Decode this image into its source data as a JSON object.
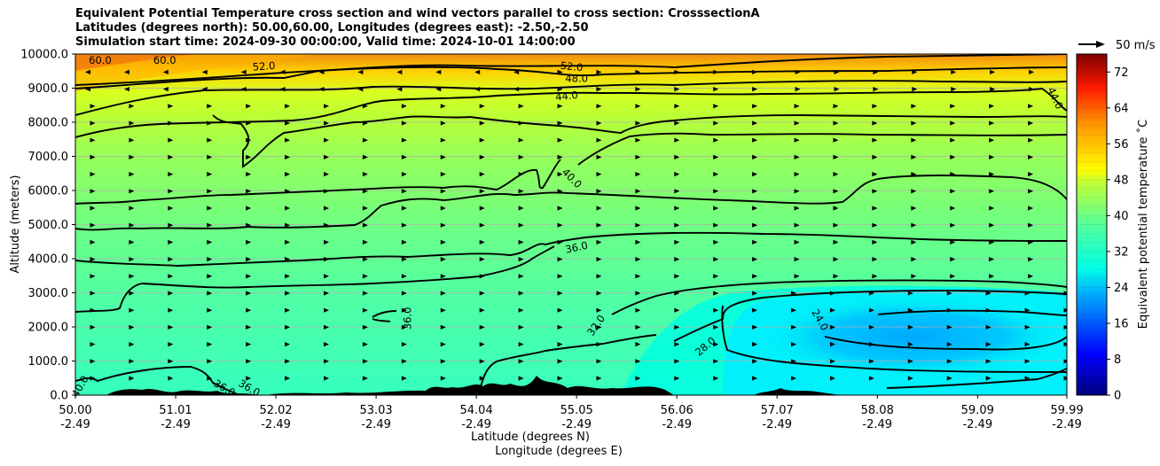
{
  "title": {
    "line1": "Equivalent Potential Temperature cross section and wind vectors parallel to cross section: CrosssectionA",
    "line2": "Latitudes (degrees north): 50.00,60.00, Longitudes (degrees east): -2.50,-2.50",
    "line3": "Simulation start time: 2024-09-30 00:00:00, Valid time: 2024-10-01 14:00:00"
  },
  "quiver_key": {
    "label": "50 m/s"
  },
  "chart_data": {
    "type": "heatmap",
    "title": "Equivalent Potential Temperature cross section and wind vectors parallel to cross section: CrosssectionA",
    "ylabel": "Altitude (meters)",
    "xlabel_line1": "Latitude (degrees N)",
    "xlabel_line2": "Longitude (degrees E)",
    "colorbar_label": "Equivalent potential temperature $^\\circ$C",
    "colorbar_label_display": "Equivalent potential temperature ˚C",
    "ylim": [
      0,
      10000
    ],
    "xlim": [
      50.0,
      59.99
    ],
    "y_ticks": [
      "0.0",
      "1000.0",
      "2000.0",
      "3000.0",
      "4000.0",
      "5000.0",
      "6000.0",
      "7000.0",
      "8000.0",
      "9000.0",
      "10000.0"
    ],
    "y_tick_values": [
      0,
      1000,
      2000,
      3000,
      4000,
      5000,
      6000,
      7000,
      8000,
      9000,
      10000
    ],
    "x_tick_values": [
      50.0,
      51.01,
      52.02,
      53.03,
      54.04,
      55.05,
      56.06,
      57.07,
      58.08,
      59.09,
      59.99
    ],
    "x_ticks_lat": [
      "50.00",
      "51.01",
      "52.02",
      "53.03",
      "54.04",
      "55.05",
      "56.06",
      "57.07",
      "58.08",
      "59.09",
      "59.99"
    ],
    "x_ticks_lon": [
      "-2.49",
      "-2.49",
      "-2.49",
      "-2.49",
      "-2.49",
      "-2.49",
      "-2.49",
      "-2.49",
      "-2.49",
      "-2.49",
      "-2.49"
    ],
    "colorbar_ticks": [
      "0",
      "8",
      "16",
      "24",
      "32",
      "40",
      "48",
      "56",
      "64",
      "72"
    ],
    "colorbar_range": [
      0,
      76
    ],
    "grid": "horizontal",
    "contour_labels": [
      {
        "text": "60.0",
        "lat": 50.25,
        "alt": 9800
      },
      {
        "text": "60.0",
        "lat": 50.9,
        "alt": 9800
      },
      {
        "text": "52.0",
        "lat": 51.9,
        "alt": 9630
      },
      {
        "text": "52.0",
        "lat": 55.0,
        "alt": 9620
      },
      {
        "text": "48.0",
        "lat": 55.05,
        "alt": 9270
      },
      {
        "text": "44.0",
        "lat": 54.95,
        "alt": 8760
      },
      {
        "text": "44.0",
        "lat": 59.87,
        "alt": 8700
      },
      {
        "text": "40.0",
        "lat": 55.0,
        "alt": 6350
      },
      {
        "text": "36.0",
        "lat": 55.05,
        "alt": 4320
      },
      {
        "text": "36.0",
        "lat": 53.35,
        "alt": 2250
      },
      {
        "text": "32.0",
        "lat": 55.25,
        "alt": 2040
      },
      {
        "text": "28.0",
        "lat": 56.35,
        "alt": 1420
      },
      {
        "text": "24.0",
        "lat": 57.5,
        "alt": 2200
      },
      {
        "text": "36.0",
        "lat": 51.5,
        "alt": 200
      },
      {
        "text": "36.0",
        "lat": 51.75,
        "alt": 200
      },
      {
        "text": "40.0",
        "lat": 50.05,
        "alt": 250
      }
    ]
  }
}
